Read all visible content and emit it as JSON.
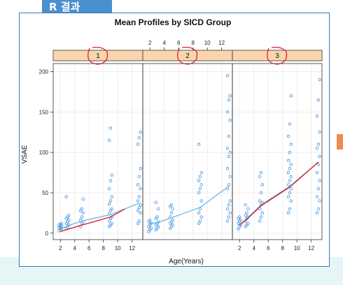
{
  "slide": {
    "tag": "R 결과"
  },
  "colors": {
    "band": "#e6f5f6",
    "tag_bg": "#4a8fd0",
    "frame": "#3a7abf",
    "strip": "#fbd5ae",
    "points": "#3d8fe0",
    "mean_line": "#5ab2ec",
    "annotation": "#d9232b",
    "marker": "#ef8b52"
  },
  "chart_data": {
    "type": "scatter",
    "title": "Mean Profiles by SICD Group",
    "xlabel": "Age(Years)",
    "ylabel": "VSAE",
    "xlim": [
      1,
      13.5
    ],
    "ylim": [
      -8,
      210
    ],
    "x_ticks": [
      2,
      4,
      6,
      8,
      10,
      12
    ],
    "y_ticks": [
      0,
      50,
      100,
      150,
      200
    ],
    "grid": true,
    "panels": [
      {
        "label": "1",
        "points": [
          {
            "x": 2,
            "y": [
              3,
              5,
              6,
              7,
              8,
              9,
              10,
              11,
              12
            ]
          },
          {
            "x": 3,
            "y": [
              6,
              8,
              10,
              12,
              14,
              16,
              18,
              20,
              22,
              45
            ]
          },
          {
            "x": 5,
            "y": [
              8,
              12,
              14,
              16,
              20,
              25,
              28,
              30,
              42
            ]
          },
          {
            "x": 9,
            "y": [
              8,
              10,
              12,
              15,
              18,
              20,
              24,
              28,
              30,
              36,
              40,
              45,
              55,
              65,
              72,
              115,
              130
            ]
          },
          {
            "x": 13,
            "y": [
              12,
              15,
              25,
              28,
              32,
              35,
              40,
              45,
              55,
              60,
              70,
              80,
              110,
              118,
              125
            ]
          }
        ],
        "mean_line": {
          "x": [
            2,
            3,
            5,
            9,
            13
          ],
          "y": [
            5,
            9,
            15,
            23,
            37
          ]
        },
        "annotation_line": {
          "x": [
            2,
            5,
            9,
            11
          ],
          "y": [
            2,
            10,
            20,
            30
          ]
        }
      },
      {
        "label": "2",
        "points": [
          {
            "x": 2,
            "y": [
              2,
              4,
              6,
              8,
              10,
              12,
              14,
              16
            ]
          },
          {
            "x": 3,
            "y": [
              4,
              6,
              8,
              10,
              12,
              14,
              18,
              20,
              30,
              38
            ]
          },
          {
            "x": 5,
            "y": [
              6,
              8,
              10,
              12,
              14,
              16,
              20,
              25,
              30,
              33,
              35
            ]
          },
          {
            "x": 9,
            "y": [
              12,
              15,
              20,
              25,
              30,
              40,
              50,
              55,
              60,
              65,
              70,
              75,
              110
            ]
          },
          {
            "x": 13,
            "y": [
              15,
              20,
              25,
              30,
              35,
              40,
              55,
              60,
              70,
              80,
              95,
              100,
              105,
              120,
              140,
              150,
              165,
              170,
              195
            ]
          }
        ],
        "mean_line": {
          "x": [
            2,
            3,
            5,
            9,
            13
          ],
          "y": [
            12,
            13,
            19,
            32,
            58
          ]
        }
      },
      {
        "label": "3",
        "points": [
          {
            "x": 2,
            "y": [
              5,
              8,
              10,
              12,
              14,
              16,
              18,
              20
            ]
          },
          {
            "x": 3,
            "y": [
              8,
              10,
              12,
              15,
              18,
              20,
              22,
              25,
              30,
              35
            ]
          },
          {
            "x": 5,
            "y": [
              15,
              20,
              25,
              30,
              35,
              38,
              40,
              50,
              60,
              70,
              75
            ]
          },
          {
            "x": 9,
            "y": [
              25,
              30,
              40,
              45,
              50,
              55,
              60,
              65,
              70,
              75,
              80,
              85,
              90,
              100,
              110,
              120,
              135,
              170
            ]
          },
          {
            "x": 13,
            "y": [
              25,
              30,
              40,
              45,
              55,
              65,
              75,
              85,
              95,
              105,
              110,
              125,
              145,
              165,
              190
            ]
          }
        ],
        "mean_line": {
          "x": [
            2,
            3,
            5,
            9,
            13
          ],
          "y": [
            10,
            18,
            35,
            58,
            88
          ]
        },
        "annotation_line": {
          "x": [
            2,
            3,
            5,
            9,
            13
          ],
          "y": [
            10,
            17,
            34,
            57,
            88
          ]
        }
      }
    ]
  }
}
